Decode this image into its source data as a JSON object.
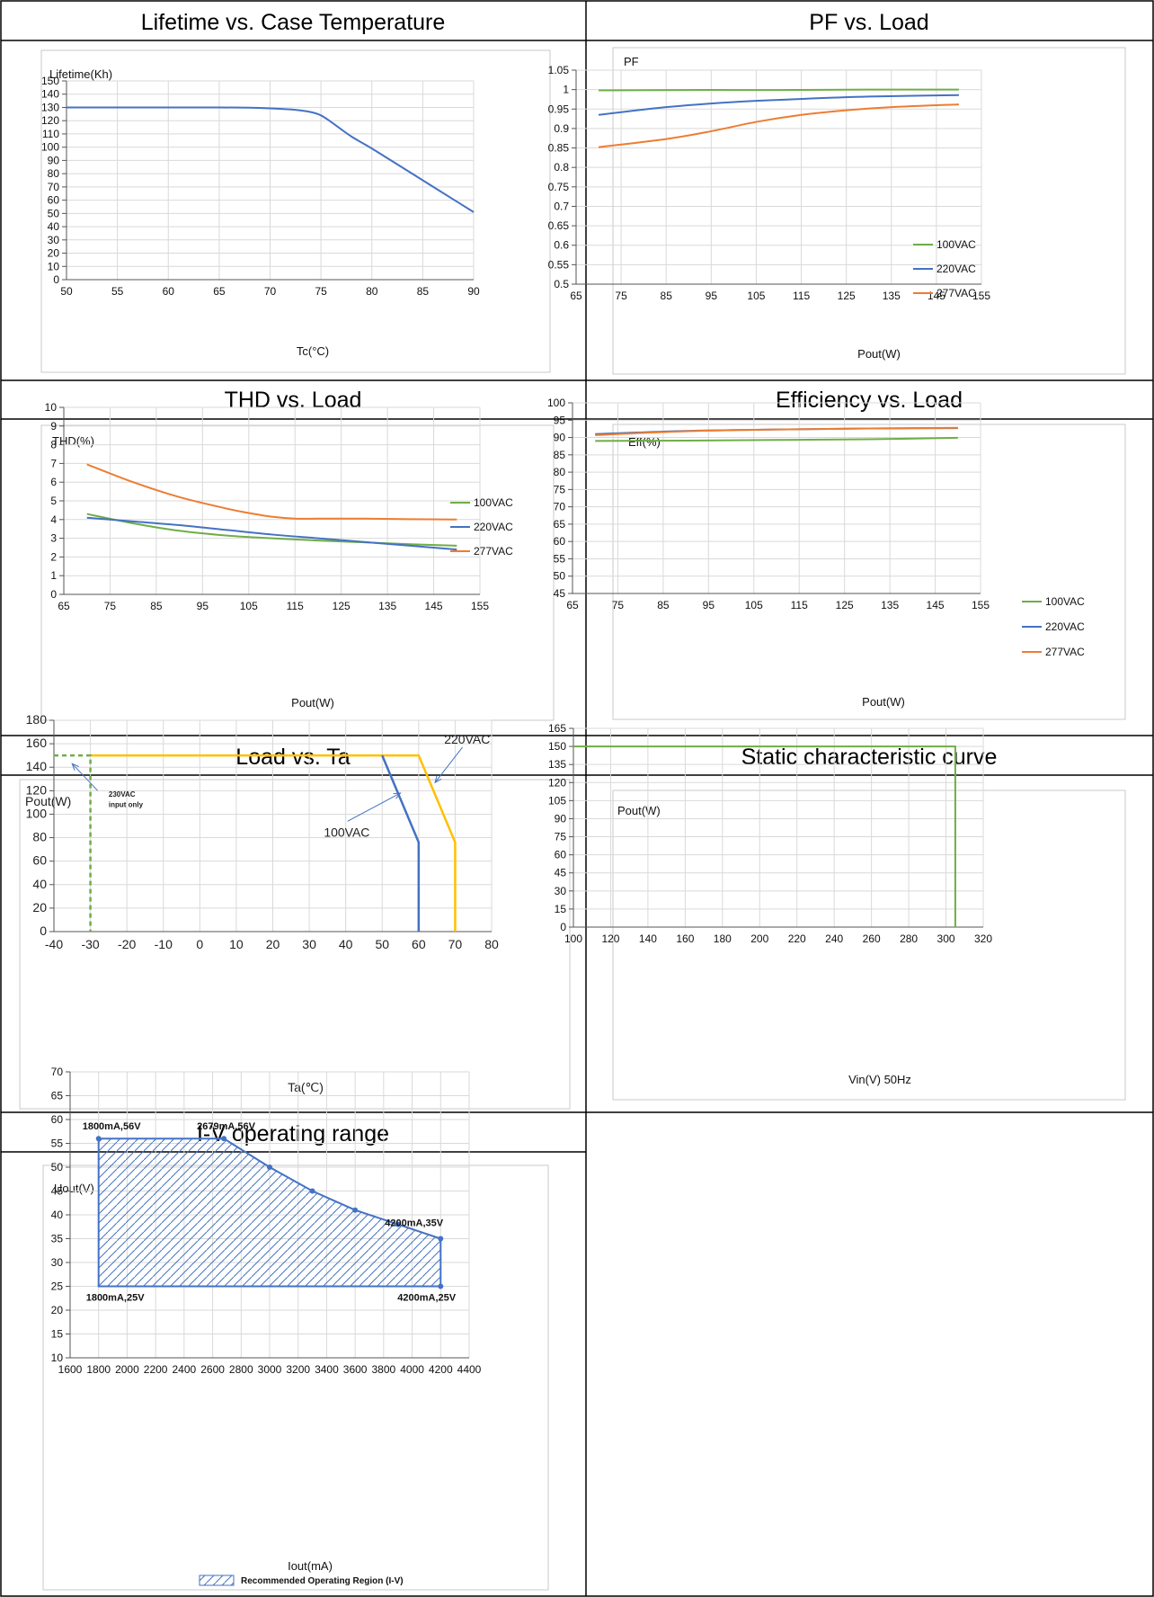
{
  "chart_data": [
    {
      "type": "line",
      "title": "Lifetime vs. Case Temperature",
      "ylabel": "Lifetime(Kh)",
      "xlabel": "Tc(°C)",
      "xlim": [
        50,
        90
      ],
      "ylim": [
        0,
        150
      ],
      "xticks": [
        50,
        55,
        60,
        65,
        70,
        75,
        80,
        85,
        90
      ],
      "yticks": [
        0,
        10,
        20,
        30,
        40,
        50,
        60,
        70,
        80,
        90,
        100,
        110,
        120,
        130,
        140,
        150
      ],
      "grid": true,
      "series": [
        {
          "color": "#4472c4",
          "x": [
            50,
            55,
            60,
            65,
            68,
            70,
            72,
            74,
            75,
            76,
            78,
            80,
            85,
            90
          ],
          "y": [
            130,
            130,
            130,
            130,
            129.8,
            129.3,
            128.5,
            126.5,
            124,
            119,
            108,
            99,
            75,
            51
          ]
        }
      ]
    },
    {
      "type": "line",
      "title": "PF vs. Load",
      "ylabel": "PF",
      "xlabel": "Pout(W)",
      "xlim": [
        65,
        155
      ],
      "ylim": [
        0.5,
        1.05
      ],
      "xticks": [
        65,
        75,
        85,
        95,
        105,
        115,
        125,
        135,
        145,
        155
      ],
      "yticks": [
        "0.5",
        "0.55",
        "0.6",
        "0.65",
        "0.7",
        "0.75",
        "0.8",
        "0.85",
        "0.9",
        "0.95",
        "1",
        "1.05"
      ],
      "grid": true,
      "legend": "right",
      "series": [
        {
          "name": "100VAC",
          "color": "#70ad47",
          "x": [
            70,
            90,
            110,
            130,
            150
          ],
          "y": [
            0.998,
            0.999,
            0.999,
            1.0,
            1.0
          ]
        },
        {
          "name": "220VAC",
          "color": "#4472c4",
          "x": [
            70,
            85,
            100,
            115,
            130,
            150
          ],
          "y": [
            0.935,
            0.955,
            0.968,
            0.976,
            0.982,
            0.986
          ]
        },
        {
          "name": "277VAC",
          "color": "#ed7d31",
          "x": [
            70,
            85,
            95,
            105,
            115,
            125,
            135,
            150
          ],
          "y": [
            0.852,
            0.873,
            0.893,
            0.917,
            0.935,
            0.947,
            0.955,
            0.962
          ]
        }
      ]
    },
    {
      "type": "line",
      "title": "THD vs. Load",
      "ylabel": "THD(%)",
      "xlabel": "Pout(W)",
      "xlim": [
        65,
        155
      ],
      "ylim": [
        0,
        10
      ],
      "xticks": [
        65,
        75,
        85,
        95,
        105,
        115,
        125,
        135,
        145,
        155
      ],
      "yticks": [
        0,
        1,
        2,
        3,
        4,
        5,
        6,
        7,
        8,
        9,
        10
      ],
      "grid": true,
      "legend": "upper right",
      "series": [
        {
          "name": "100VAC",
          "color": "#70ad47",
          "x": [
            70,
            80,
            90,
            100,
            110,
            120,
            130,
            140,
            150
          ],
          "y": [
            4.3,
            3.8,
            3.4,
            3.15,
            3.0,
            2.88,
            2.78,
            2.68,
            2.6
          ]
        },
        {
          "name": "220VAC",
          "color": "#4472c4",
          "x": [
            70,
            80,
            90,
            100,
            110,
            120,
            130,
            140,
            150
          ],
          "y": [
            4.1,
            3.9,
            3.7,
            3.45,
            3.2,
            3.0,
            2.8,
            2.6,
            2.4
          ]
        },
        {
          "name": "277VAC",
          "color": "#ed7d31",
          "x": [
            70,
            80,
            90,
            100,
            105,
            110,
            115,
            120,
            130,
            140,
            150
          ],
          "y": [
            6.95,
            6.0,
            5.2,
            4.6,
            4.35,
            4.15,
            4.05,
            4.05,
            4.05,
            4.02,
            4.0
          ]
        }
      ]
    },
    {
      "type": "line",
      "title": "Efficiency vs. Load",
      "ylabel": "Eff(%)",
      "xlabel": "Pout(W)",
      "xlim": [
        65,
        155
      ],
      "ylim": [
        45,
        100
      ],
      "xticks": [
        65,
        75,
        85,
        95,
        105,
        115,
        125,
        135,
        145,
        155
      ],
      "yticks": [
        45,
        50,
        55,
        60,
        65,
        70,
        75,
        80,
        85,
        90,
        95,
        100
      ],
      "grid": true,
      "legend": "lower right",
      "series": [
        {
          "name": "100VAC",
          "color": "#70ad47",
          "x": [
            70,
            90,
            110,
            130,
            150
          ],
          "y": [
            89.0,
            89.1,
            89.3,
            89.5,
            89.9
          ]
        },
        {
          "name": "220VAC",
          "color": "#4472c4",
          "x": [
            70,
            90,
            110,
            130,
            150
          ],
          "y": [
            91.0,
            91.9,
            92.3,
            92.6,
            92.7
          ]
        },
        {
          "name": "277VAC",
          "color": "#ed7d31",
          "x": [
            70,
            90,
            110,
            130,
            150
          ],
          "y": [
            90.7,
            91.8,
            92.3,
            92.6,
            92.8
          ]
        }
      ]
    },
    {
      "type": "line",
      "title": "Load vs. Ta",
      "ylabel": "Pout(W)",
      "xlabel": "Ta(℃)",
      "xlim": [
        -40,
        80
      ],
      "ylim": [
        0,
        180
      ],
      "xticks": [
        -40,
        -30,
        -20,
        -10,
        0,
        10,
        20,
        30,
        40,
        50,
        60,
        70,
        80
      ],
      "yticks": [
        0,
        20,
        40,
        60,
        80,
        100,
        120,
        140,
        160,
        180
      ],
      "grid": true,
      "series": [
        {
          "color": "#ffc000",
          "x": [
            -30,
            60,
            70,
            70
          ],
          "y": [
            150,
            150,
            76,
            0
          ]
        },
        {
          "color": "#4472c4",
          "x": [
            50,
            60,
            60
          ],
          "y": [
            150,
            76,
            0
          ]
        },
        {
          "color": "#70ad47",
          "dashed": true,
          "x": [
            -40,
            -30,
            -30
          ],
          "y": [
            150,
            150,
            0
          ]
        }
      ],
      "annotations": [
        {
          "text": "220VAC",
          "x": 67,
          "y": 160
        },
        {
          "text": "100VAC",
          "x": 34,
          "y": 81
        },
        {
          "text": "230VAC",
          "x": -25,
          "y": 115
        },
        {
          "text": "input only",
          "x": -25,
          "y": 106
        }
      ]
    },
    {
      "type": "line",
      "title": "Static characteristic curve",
      "ylabel": "Pout(W)",
      "xlabel": "Vin(V) 50Hz",
      "xlim": [
        100,
        320
      ],
      "ylim": [
        0,
        165
      ],
      "xticks": [
        100,
        120,
        140,
        160,
        180,
        200,
        220,
        240,
        260,
        280,
        300,
        320
      ],
      "yticks": [
        0,
        15,
        30,
        45,
        60,
        75,
        90,
        105,
        120,
        135,
        150,
        165
      ],
      "grid": true,
      "series": [
        {
          "color": "#70ad47",
          "x": [
            100,
            305,
            305
          ],
          "y": [
            150,
            150,
            0
          ]
        }
      ]
    },
    {
      "type": "area",
      "title": "I-V operating range",
      "ylabel": "Uout(V)",
      "xlabel": "Iout(mA)",
      "xlim": [
        1600,
        4400
      ],
      "ylim": [
        10,
        70
      ],
      "xticks": [
        1600,
        1800,
        2000,
        2200,
        2400,
        2600,
        2800,
        3000,
        3200,
        3400,
        3600,
        3800,
        4000,
        4200,
        4400
      ],
      "yticks": [
        10,
        15,
        20,
        25,
        30,
        35,
        40,
        45,
        50,
        55,
        60,
        65,
        70
      ],
      "grid": true,
      "legend": "Recommended Operating Region (I-V)",
      "series": [
        {
          "color": "#4472c4",
          "x": [
            1800,
            2679,
            3000,
            3300,
            3600,
            3900,
            4200,
            4200,
            1800,
            1800
          ],
          "y": [
            56,
            56,
            50,
            45,
            41,
            38,
            35,
            25,
            25,
            56
          ]
        }
      ],
      "point_labels": [
        {
          "text": "1800mA,56V",
          "x": 1800,
          "y": 56
        },
        {
          "text": "2679mA,56V",
          "x": 2679,
          "y": 56
        },
        {
          "text": "4200mA,35V",
          "x": 4200,
          "y": 35
        },
        {
          "text": "1800mA,25V",
          "x": 1800,
          "y": 25
        },
        {
          "text": "4200mA,25V",
          "x": 4200,
          "y": 25
        }
      ]
    }
  ]
}
